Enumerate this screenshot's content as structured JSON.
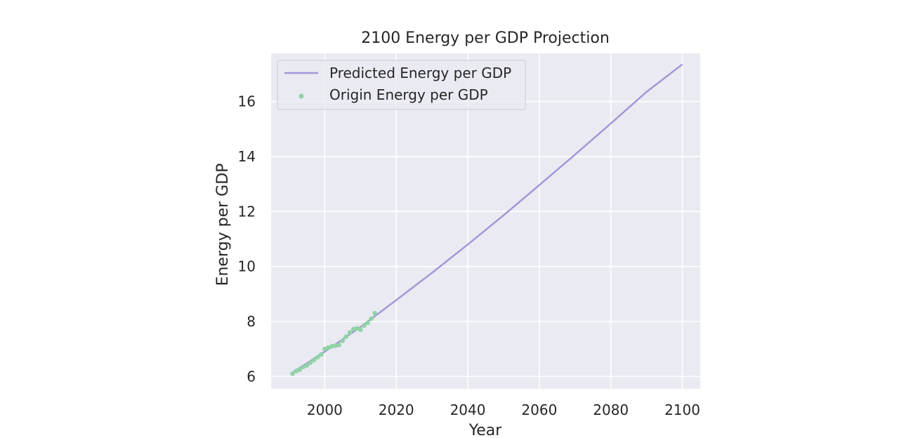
{
  "chart_data": {
    "type": "line",
    "title": "2100 Energy per GDP Projection",
    "xlabel": "Year",
    "ylabel": "Energy per GDP",
    "xlim": [
      1985,
      2105
    ],
    "ylim": [
      5.55,
      17.75
    ],
    "xticks": [
      2000,
      2020,
      2040,
      2060,
      2080,
      2100
    ],
    "yticks": [
      6,
      8,
      10,
      12,
      14,
      16
    ],
    "grid": true,
    "legend_position": "top-left",
    "series": [
      {
        "name": "Predicted Energy per GDP",
        "kind": "line",
        "color": "#a597d6",
        "x": [
          1991,
          2000,
          2010,
          2020,
          2030,
          2040,
          2050,
          2060,
          2070,
          2080,
          2090,
          2100
        ],
        "y": [
          6.15,
          6.9,
          7.8,
          8.78,
          9.77,
          10.8,
          11.86,
          12.96,
          14.07,
          15.2,
          16.35,
          17.35
        ]
      },
      {
        "name": "Origin Energy per GDP",
        "kind": "scatter",
        "color": "#8fd3a6",
        "x": [
          1991,
          1992,
          1993,
          1994,
          1995,
          1996,
          1997,
          1998,
          1999,
          2000,
          2001,
          2002,
          2003,
          2004,
          2005,
          2006,
          2007,
          2008,
          2009,
          2010,
          2011,
          2012,
          2013,
          2014
        ],
        "y": [
          6.1,
          6.2,
          6.25,
          6.35,
          6.4,
          6.5,
          6.6,
          6.7,
          6.8,
          7.0,
          7.05,
          7.1,
          7.12,
          7.15,
          7.3,
          7.45,
          7.6,
          7.72,
          7.75,
          7.7,
          7.85,
          7.95,
          8.1,
          8.3
        ]
      }
    ]
  }
}
